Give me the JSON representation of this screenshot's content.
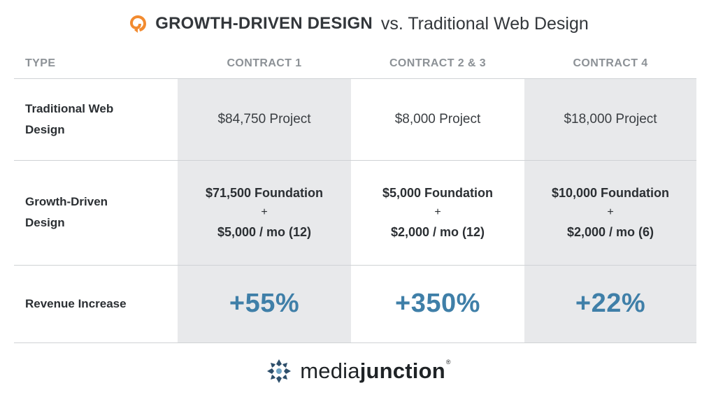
{
  "title": {
    "logo_icon": "hubspot-gdd-swirl-icon",
    "logo_color": "#f28b30",
    "strong": "GROWTH-DRIVEN DESIGN",
    "rest": "vs. Traditional Web Design"
  },
  "table": {
    "headers": {
      "type": "TYPE",
      "c1": "CONTRACT 1",
      "c2": "CONTRACT 2 & 3",
      "c3": "CONTRACT 4"
    },
    "rows": {
      "traditional": {
        "label_line1": "Traditional Web",
        "label_line2": "Design",
        "c1": "$84,750 Project",
        "c2": "$8,000 Project",
        "c3": "$18,000 Project"
      },
      "gdd": {
        "label_line1": "Growth-Driven",
        "label_line2": "Design",
        "c1": {
          "foundation": "$71,500 Foundation",
          "plus": "+",
          "monthly": "$5,000 / mo (12)"
        },
        "c2": {
          "foundation": "$5,000 Foundation",
          "plus": "+",
          "monthly": "$2,000 / mo (12)"
        },
        "c3": {
          "foundation": "$10,000 Foundation",
          "plus": "+",
          "monthly": "$2,000 / mo (6)"
        }
      },
      "revenue": {
        "label": "Revenue Increase",
        "c1": "+55%",
        "c2": "+350%",
        "c3": "+22%"
      }
    },
    "colors": {
      "shade": "#e8e9eb",
      "accent": "#3f7fa8",
      "header": "#8c9196"
    }
  },
  "footer": {
    "logo_icon": "mediajunction-crosshair-icon",
    "text_regular": "media",
    "text_bold": "junction",
    "registered": "®"
  }
}
